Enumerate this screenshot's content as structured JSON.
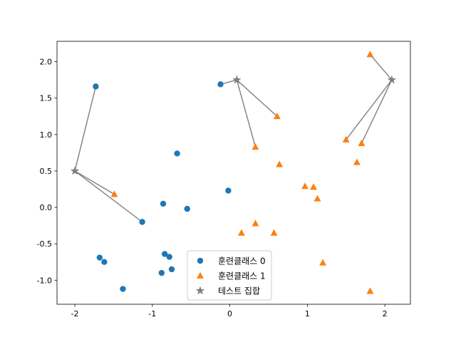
{
  "chart_data": {
    "type": "scatter",
    "title": "",
    "xlabel": "",
    "ylabel": "",
    "xlim": [
      -2.23,
      2.33
    ],
    "ylim": [
      -1.33,
      2.28
    ],
    "xticks": [
      -2,
      -1,
      0,
      1,
      2
    ],
    "xtick_labels": [
      "-2",
      "-1",
      "0",
      "1",
      "2"
    ],
    "yticks": [
      -1.0,
      -0.5,
      0.0,
      0.5,
      1.0,
      1.5,
      2.0
    ],
    "ytick_labels": [
      "-1.0",
      "-0.5",
      "0.0",
      "0.5",
      "1.0",
      "1.5",
      "2.0"
    ],
    "grid": false,
    "legend_position": "bottom-center",
    "series": [
      {
        "name": "훈련클래스 0",
        "marker": "circle",
        "color": "#1f77b4",
        "points": [
          [
            -1.73,
            1.66
          ],
          [
            -0.68,
            0.74
          ],
          [
            -0.86,
            0.05
          ],
          [
            -0.55,
            -0.02
          ],
          [
            -1.13,
            -0.2
          ],
          [
            -0.12,
            1.69
          ],
          [
            -0.02,
            0.23
          ],
          [
            -1.68,
            -0.69
          ],
          [
            -1.62,
            -0.75
          ],
          [
            -0.84,
            -0.64
          ],
          [
            -0.78,
            -0.68
          ],
          [
            -0.88,
            -0.9
          ],
          [
            -0.75,
            -0.85
          ],
          [
            -1.38,
            -1.12
          ]
        ]
      },
      {
        "name": "훈련클래스 1",
        "marker": "triangle",
        "color": "#ff7f0e",
        "points": [
          [
            1.81,
            2.1
          ],
          [
            0.61,
            1.25
          ],
          [
            0.33,
            0.83
          ],
          [
            1.5,
            0.93
          ],
          [
            1.7,
            0.88
          ],
          [
            0.64,
            0.59
          ],
          [
            1.64,
            0.62
          ],
          [
            -1.49,
            0.18
          ],
          [
            0.97,
            0.29
          ],
          [
            1.08,
            0.28
          ],
          [
            1.13,
            0.12
          ],
          [
            0.15,
            -0.35
          ],
          [
            0.33,
            -0.22
          ],
          [
            0.57,
            -0.35
          ],
          [
            1.2,
            -0.76
          ],
          [
            1.81,
            -1.15
          ]
        ]
      },
      {
        "name": "테스트 집합",
        "marker": "star",
        "color": "#808080",
        "points": [
          [
            -2.0,
            0.5
          ],
          [
            0.09,
            1.75
          ],
          [
            2.09,
            1.75
          ]
        ]
      }
    ],
    "neighbor_lines": [
      {
        "from": [
          -2.0,
          0.5
        ],
        "to": [
          -1.73,
          1.66
        ]
      },
      {
        "from": [
          -2.0,
          0.5
        ],
        "to": [
          -1.49,
          0.18
        ]
      },
      {
        "from": [
          -2.0,
          0.5
        ],
        "to": [
          -1.13,
          -0.2
        ]
      },
      {
        "from": [
          0.09,
          1.75
        ],
        "to": [
          -0.12,
          1.69
        ]
      },
      {
        "from": [
          0.09,
          1.75
        ],
        "to": [
          0.61,
          1.25
        ]
      },
      {
        "from": [
          0.09,
          1.75
        ],
        "to": [
          0.33,
          0.83
        ]
      },
      {
        "from": [
          2.09,
          1.75
        ],
        "to": [
          1.81,
          2.1
        ]
      },
      {
        "from": [
          2.09,
          1.75
        ],
        "to": [
          1.5,
          0.93
        ]
      },
      {
        "from": [
          2.09,
          1.75
        ],
        "to": [
          1.7,
          0.88
        ]
      }
    ],
    "line_color": "#808080",
    "axis_color": "#000000"
  }
}
